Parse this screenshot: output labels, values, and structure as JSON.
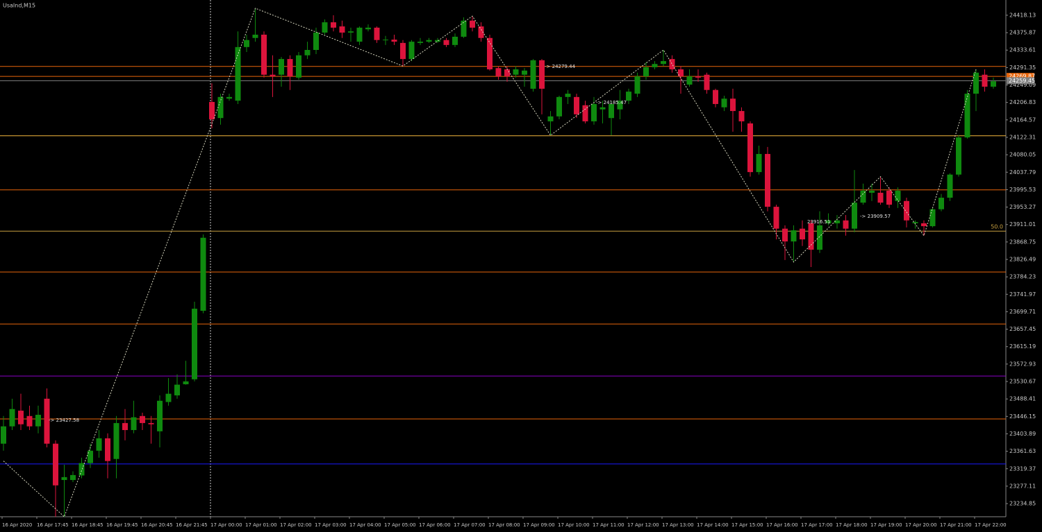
{
  "chart_data": {
    "type": "candlestick",
    "title": "UsaInd,M15",
    "categories": [
      "16 Apr 2020",
      null,
      null,
      null,
      "16 Apr 17:45",
      null,
      null,
      null,
      "16 Apr 18:45",
      null,
      null,
      null,
      "16 Apr 19:45",
      null,
      null,
      null,
      "16 Apr 20:45",
      null,
      null,
      null,
      "16 Apr 21:45",
      null,
      null,
      null,
      "17 Apr 00:00",
      null,
      null,
      null,
      "17 Apr 01:00",
      null,
      null,
      null,
      "17 Apr 02:00",
      null,
      null,
      null,
      "17 Apr 03:00",
      null,
      null,
      null,
      "17 Apr 04:00",
      null,
      null,
      null,
      "17 Apr 05:00",
      null,
      null,
      null,
      "17 Apr 06:00",
      null,
      null,
      null,
      "17 Apr 07:00",
      null,
      null,
      null,
      "17 Apr 08:00",
      null,
      null,
      null,
      "17 Apr 09:00",
      null,
      null,
      null,
      "17 Apr 10:00",
      null,
      null,
      null,
      "17 Apr 11:00",
      null,
      null,
      null,
      "17 Apr 12:00",
      null,
      null,
      null,
      "17 Apr 13:00",
      null,
      null,
      null,
      "17 Apr 14:00",
      null,
      null,
      null,
      "17 Apr 15:00",
      null,
      null,
      null,
      "17 Apr 16:00",
      null,
      null,
      null,
      "17 Apr 17:00",
      null,
      null,
      null,
      "17 Apr 18:00",
      null,
      null,
      null,
      "17 Apr 19:00",
      null,
      null,
      null,
      "17 Apr 20:00",
      null,
      null,
      null,
      "17 Apr 21:00",
      null,
      null,
      null,
      "17 Apr 22:00",
      null,
      null
    ],
    "open": [
      23380,
      23422,
      23460,
      23447,
      23422,
      23489,
      23380,
      23292,
      23292,
      23303,
      23333,
      23363,
      23393,
      23343,
      23430,
      23413,
      23447,
      23430,
      23410,
      23481,
      23497,
      23524,
      23536,
      23702,
      24208,
      24169,
      24216,
      24211,
      24341,
      24363,
      24371,
      24274,
      24274,
      24312,
      24267,
      24321,
      24334,
      24376,
      24401,
      24391,
      24376,
      24354,
      24384,
      24388,
      24358,
      24359,
      24351,
      24312,
      24351,
      24354,
      24354,
      24358,
      24346,
      24366,
      24405,
      24391,
      24363,
      24290,
      24287,
      24274,
      24274,
      24240,
      24309,
      24161,
      24173,
      24220,
      24220,
      24200,
      24161,
      24190,
      24169,
      24190,
      24211,
      24228,
      24270,
      24292,
      24300,
      24312,
      24287,
      24250,
      24270,
      24274,
      24237,
      24195,
      24216,
      24186,
      24156,
      24038,
      24082,
      23954,
      23901,
      23870,
      23901,
      23914,
      23850,
      23914,
      23914,
      23921,
      23901,
      23964,
      23988,
      23988,
      23993,
      23968,
      23968,
      23914,
      23914,
      23907,
      23948,
      23976,
      24032,
      24122,
      24228,
      24274,
      24245
    ],
    "high": [
      23447,
      23489,
      23501,
      23472,
      23472,
      23514,
      23388,
      23329,
      23313,
      23346,
      23380,
      23413,
      23405,
      23447,
      23464,
      23484,
      23455,
      23447,
      23497,
      23539,
      23548,
      23581,
      23724,
      23887,
      24253,
      24228,
      24228,
      24379,
      24371,
      24435,
      24379,
      24321,
      24317,
      24321,
      24329,
      24354,
      24388,
      24408,
      24418,
      24405,
      24388,
      24391,
      24396,
      24391,
      24368,
      24371,
      24358,
      24358,
      24363,
      24363,
      24363,
      24363,
      24374,
      24413,
      24416,
      24401,
      24371,
      24295,
      24295,
      24295,
      24290,
      24312,
      24312,
      24186,
      24223,
      24237,
      24228,
      24211,
      24220,
      24211,
      24211,
      24237,
      24240,
      24279,
      24304,
      24307,
      24334,
      24321,
      24295,
      24287,
      24287,
      24279,
      24240,
      24223,
      24240,
      24195,
      24161,
      24102,
      24099,
      23959,
      23909,
      23909,
      23921,
      23921,
      23943,
      23938,
      23934,
      23934,
      24043,
      24010,
      24010,
      24027,
      24001,
      24001,
      23976,
      23921,
      23921,
      23951,
      23985,
      24035,
      24127,
      24237,
      24287,
      24287,
      24267
    ],
    "low": [
      23363,
      23413,
      23413,
      23413,
      23405,
      23371,
      23203,
      23203,
      23287,
      23296,
      23321,
      23346,
      23296,
      23296,
      23388,
      23405,
      23413,
      23380,
      23371,
      23472,
      23489,
      23523,
      23531,
      23696,
      24144,
      24153,
      24211,
      24203,
      24329,
      24354,
      24267,
      24220,
      24245,
      24237,
      24262,
      24312,
      24324,
      24371,
      24379,
      24363,
      24354,
      24346,
      24379,
      24351,
      24346,
      24346,
      24295,
      24307,
      24346,
      24351,
      24351,
      24341,
      24341,
      24363,
      24379,
      24354,
      24284,
      24262,
      24257,
      24267,
      24245,
      24233,
      24178,
      24127,
      24166,
      24203,
      24169,
      24156,
      24153,
      24156,
      24127,
      24166,
      24203,
      24220,
      24262,
      24287,
      24295,
      24279,
      24228,
      24245,
      24257,
      24228,
      24195,
      24186,
      24136,
      24136,
      24027,
      24032,
      23943,
      23875,
      23825,
      23820,
      23859,
      23808,
      23842,
      23909,
      23901,
      23884,
      23892,
      23959,
      23968,
      23959,
      23951,
      23951,
      23904,
      23901,
      23884,
      23904,
      23943,
      23968,
      24027,
      24119,
      24186,
      24233,
      24240
    ],
    "close": [
      23422,
      23464,
      23427,
      23422,
      23450,
      23380,
      23279,
      23299,
      23304,
      23333,
      23363,
      23393,
      23338,
      23430,
      23413,
      23444,
      23430,
      23427,
      23484,
      23501,
      23523,
      23531,
      23707,
      23879,
      24166,
      24220,
      24220,
      24341,
      24358,
      24371,
      24274,
      24270,
      24312,
      24270,
      24321,
      24334,
      24376,
      24401,
      24388,
      24376,
      24379,
      24388,
      24388,
      24358,
      24359,
      24354,
      24312,
      24354,
      24354,
      24358,
      24358,
      24346,
      24366,
      24405,
      24388,
      24363,
      24287,
      24270,
      24270,
      24287,
      24284,
      24309,
      24240,
      24173,
      24220,
      24228,
      24178,
      24161,
      24203,
      24195,
      24203,
      24211,
      24233,
      24270,
      24292,
      24300,
      24307,
      24287,
      24270,
      24270,
      24267,
      24237,
      24203,
      24216,
      24186,
      24161,
      24038,
      24082,
      23954,
      23901,
      23870,
      23897,
      23875,
      23850,
      23909,
      23921,
      23921,
      23901,
      23964,
      23993,
      23993,
      23964,
      23959,
      23993,
      23921,
      23917,
      23907,
      23948,
      23976,
      24032,
      24122,
      24228,
      24279,
      24245,
      24258
    ],
    "up_color": "#0f8a0f",
    "down_color": "#dc143c",
    "ylim": [
      23203,
      24455
    ],
    "yticks": [
      24418.13,
      24375.87,
      24333.61,
      24291.35,
      24249.09,
      24206.83,
      24164.57,
      24122.31,
      24080.05,
      24037.79,
      23995.53,
      23953.27,
      23911.01,
      23868.75,
      23826.49,
      23784.23,
      23741.97,
      23699.71,
      23657.45,
      23615.19,
      23572.93,
      23530.67,
      23488.41,
      23446.15,
      23403.89,
      23361.63,
      23319.37,
      23277.11,
      23234.85
    ],
    "hlines": [
      {
        "value": 24294,
        "color": "#e8650a"
      },
      {
        "value": 24269.87,
        "color": "#e8650a",
        "label": "24269.87"
      },
      {
        "value": 24259.45,
        "color": "#808080",
        "label": "24259.45"
      },
      {
        "value": 24126,
        "color": "#f5b83d"
      },
      {
        "value": 23995,
        "color": "#e8650a"
      },
      {
        "value": 23895,
        "color": "#c8a040",
        "label": "50.0"
      },
      {
        "value": 23796,
        "color": "#e8650a"
      },
      {
        "value": 23670,
        "color": "#e8650a"
      },
      {
        "value": 23544,
        "color": "#8b00c8"
      },
      {
        "value": 23440,
        "color": "#e8650a"
      },
      {
        "value": 23331,
        "color": "#1a1aff"
      }
    ],
    "zigzag": {
      "color": "#d8d8c0",
      "x": [
        0,
        7,
        29,
        46,
        54,
        63,
        76,
        91,
        101,
        106,
        112
      ],
      "values": [
        23338,
        23203,
        24435,
        24295,
        24416,
        24127,
        24334,
        23820,
        24027,
        23884,
        24287
      ]
    },
    "annotations": [
      "-> 23427.58",
      "-> 24279.44",
      "-> 24185.47",
      "-> 23909.57",
      "23916.51"
    ]
  }
}
